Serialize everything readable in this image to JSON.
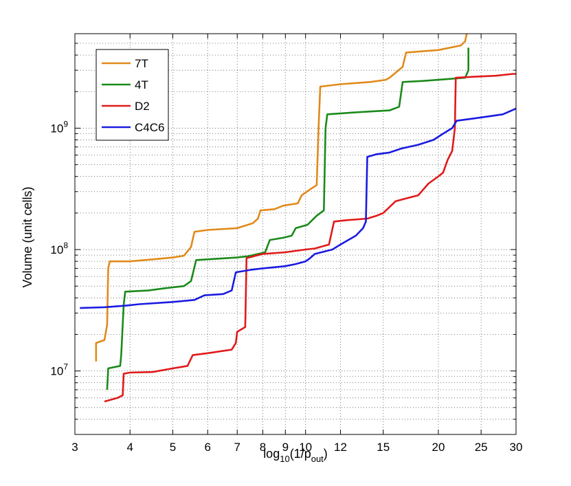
{
  "chart_data": {
    "type": "line",
    "xlabel": {
      "base": "log",
      "sub": "10",
      "mid": "(1/p",
      "sub2": "out",
      "end": ")"
    },
    "ylabel": "Volume (unit cells)",
    "x_scale": "log",
    "y_scale": "log",
    "xlim": [
      3,
      30
    ],
    "ylim": [
      3000000,
      6000000000
    ],
    "grid": true,
    "legend_position": "top-left",
    "x_ticks": [
      3,
      4,
      5,
      6,
      7,
      8,
      9,
      10,
      12,
      15,
      20,
      25,
      30
    ],
    "x_tick_labels": [
      "3",
      "4",
      "5",
      "6",
      "7",
      "8",
      "9",
      "10",
      "12",
      "15",
      "20",
      "25",
      "30"
    ],
    "y_ticks": [
      10000000,
      100000000,
      1000000000
    ],
    "y_tick_labels": [
      {
        "base": "10",
        "exp": "7"
      },
      {
        "base": "10",
        "exp": "8"
      },
      {
        "base": "10",
        "exp": "9"
      }
    ],
    "series": [
      {
        "name": "7T",
        "color": "#e08a1a",
        "points": [
          [
            3.35,
            12000000.0
          ],
          [
            3.35,
            17000000.0
          ],
          [
            3.5,
            18000000.0
          ],
          [
            3.55,
            24000000.0
          ],
          [
            3.57,
            70000000.0
          ],
          [
            3.6,
            80000000.0
          ],
          [
            4.0,
            80000000.0
          ],
          [
            4.5,
            83000000.0
          ],
          [
            5.0,
            86000000.0
          ],
          [
            5.3,
            89000000.0
          ],
          [
            5.5,
            105000000.0
          ],
          [
            5.6,
            140000000.0
          ],
          [
            6.0,
            145000000.0
          ],
          [
            7.0,
            150000000.0
          ],
          [
            7.6,
            165000000.0
          ],
          [
            7.8,
            180000000.0
          ],
          [
            7.9,
            210000000.0
          ],
          [
            8.5,
            215000000.0
          ],
          [
            8.9,
            230000000.0
          ],
          [
            9.6,
            240000000.0
          ],
          [
            9.8,
            280000000.0
          ],
          [
            10.2,
            310000000.0
          ],
          [
            10.6,
            340000000.0
          ],
          [
            10.7,
            1000000000.0
          ],
          [
            10.8,
            2200000000.0
          ],
          [
            12.0,
            2300000000.0
          ],
          [
            14.0,
            2400000000.0
          ],
          [
            15.2,
            2500000000.0
          ],
          [
            15.5,
            2600000000.0
          ],
          [
            16.6,
            3200000000.0
          ],
          [
            16.9,
            4200000000.0
          ],
          [
            20.0,
            4400000000.0
          ],
          [
            22.5,
            4800000000.0
          ],
          [
            23.0,
            5200000000.0
          ],
          [
            23.2,
            6000000000.0
          ]
        ]
      },
      {
        "name": "4T",
        "color": "#1a8a1a",
        "points": [
          [
            3.55,
            7000000.0
          ],
          [
            3.57,
            10500000.0
          ],
          [
            3.8,
            11000000.0
          ],
          [
            3.82,
            13500000.0
          ],
          [
            3.87,
            35000000.0
          ],
          [
            3.9,
            45000000.0
          ],
          [
            4.4,
            46000000.0
          ],
          [
            4.8,
            48000000.0
          ],
          [
            5.3,
            50000000.0
          ],
          [
            5.5,
            55000000.0
          ],
          [
            5.65,
            82000000.0
          ],
          [
            7.0,
            86000000.0
          ],
          [
            7.4,
            88000000.0
          ],
          [
            8.1,
            95000000.0
          ],
          [
            8.3,
            120000000.0
          ],
          [
            8.9,
            125000000.0
          ],
          [
            9.3,
            130000000.0
          ],
          [
            9.5,
            150000000.0
          ],
          [
            10.1,
            160000000.0
          ],
          [
            10.6,
            190000000.0
          ],
          [
            11.0,
            210000000.0
          ],
          [
            11.1,
            1000000000.0
          ],
          [
            11.2,
            1300000000.0
          ],
          [
            13.0,
            1350000000.0
          ],
          [
            15.5,
            1400000000.0
          ],
          [
            16.3,
            1500000000.0
          ],
          [
            16.6,
            2400000000.0
          ],
          [
            18.5,
            2450000000.0
          ],
          [
            20.0,
            2500000000.0
          ],
          [
            23.0,
            2600000000.0
          ],
          [
            23.4,
            3000000000.0
          ],
          [
            23.4,
            4600000000.0
          ]
        ]
      },
      {
        "name": "D2",
        "color": "#e01a1a",
        "points": [
          [
            3.5,
            5600000.0
          ],
          [
            3.75,
            6000000.0
          ],
          [
            3.85,
            6300000.0
          ],
          [
            3.87,
            9500000.0
          ],
          [
            4.0,
            9700000.0
          ],
          [
            4.5,
            9800000.0
          ],
          [
            5.0,
            10500000.0
          ],
          [
            5.4,
            11000000.0
          ],
          [
            5.55,
            13500000.0
          ],
          [
            6.0,
            14000000.0
          ],
          [
            6.8,
            15000000.0
          ],
          [
            6.95,
            17000000.0
          ],
          [
            7.0,
            21000000.0
          ],
          [
            7.3,
            23000000.0
          ],
          [
            7.35,
            85000000.0
          ],
          [
            8.0,
            92000000.0
          ],
          [
            9.0,
            95000000.0
          ],
          [
            10.0,
            100000000.0
          ],
          [
            10.5,
            102000000.0
          ],
          [
            10.8,
            105000000.0
          ],
          [
            11.3,
            110000000.0
          ],
          [
            11.6,
            170000000.0
          ],
          [
            12.5,
            175000000.0
          ],
          [
            13.8,
            180000000.0
          ],
          [
            14.5,
            190000000.0
          ],
          [
            15.0,
            200000000.0
          ],
          [
            16.0,
            250000000.0
          ],
          [
            17.0,
            265000000.0
          ],
          [
            18.0,
            280000000.0
          ],
          [
            19.0,
            350000000.0
          ],
          [
            20.0,
            400000000.0
          ],
          [
            20.5,
            430000000.0
          ],
          [
            21.0,
            550000000.0
          ],
          [
            21.5,
            650000000.0
          ],
          [
            21.8,
            1000000000.0
          ],
          [
            21.9,
            2600000000.0
          ],
          [
            24.0,
            2650000000.0
          ],
          [
            27.0,
            2700000000.0
          ],
          [
            29.5,
            2800000000.0
          ],
          [
            30.0,
            2800000000.0
          ]
        ]
      },
      {
        "name": "C4C6",
        "color": "#1a1ae0",
        "points": [
          [
            3.08,
            33000000.0
          ],
          [
            3.5,
            33500000.0
          ],
          [
            3.9,
            34500000.0
          ],
          [
            4.2,
            35500000.0
          ],
          [
            5.0,
            37000000.0
          ],
          [
            5.6,
            38500000.0
          ],
          [
            5.9,
            42000000.0
          ],
          [
            6.5,
            43000000.0
          ],
          [
            6.8,
            46000000.0
          ],
          [
            6.95,
            65000000.0
          ],
          [
            7.5,
            68000000.0
          ],
          [
            8.0,
            70000000.0
          ],
          [
            9.0,
            73000000.0
          ],
          [
            9.5,
            76000000.0
          ],
          [
            10.0,
            80000000.0
          ],
          [
            10.2,
            84000000.0
          ],
          [
            10.5,
            92000000.0
          ],
          [
            11.5,
            100000000.0
          ],
          [
            12.0,
            110000000.0
          ],
          [
            12.5,
            120000000.0
          ],
          [
            13.0,
            130000000.0
          ],
          [
            13.5,
            150000000.0
          ],
          [
            13.7,
            170000000.0
          ],
          [
            13.8,
            580000000.0
          ],
          [
            14.5,
            610000000.0
          ],
          [
            15.5,
            630000000.0
          ],
          [
            16.5,
            680000000.0
          ],
          [
            18.0,
            730000000.0
          ],
          [
            19.5,
            800000000.0
          ],
          [
            20.5,
            900000000.0
          ],
          [
            21.5,
            1000000000.0
          ],
          [
            22.0,
            1150000000.0
          ],
          [
            24.0,
            1200000000.0
          ],
          [
            26.0,
            1250000000.0
          ],
          [
            28.0,
            1300000000.0
          ],
          [
            30.0,
            1450000000.0
          ]
        ]
      }
    ]
  }
}
